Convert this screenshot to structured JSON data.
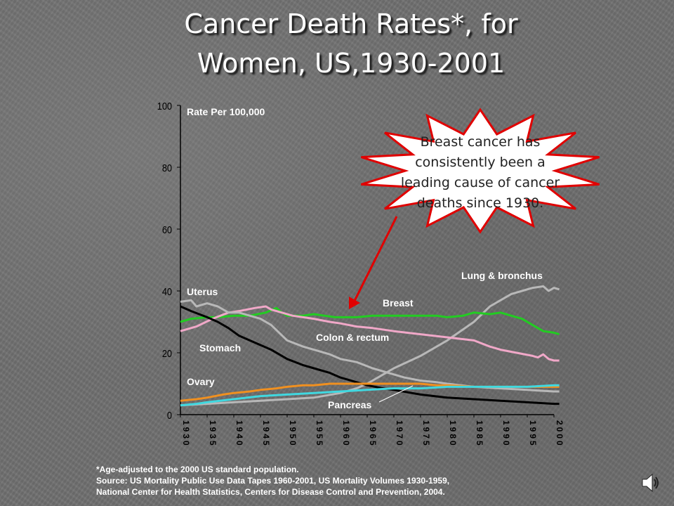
{
  "slide": {
    "title_line1": "Cancer Death Rates*, for",
    "title_line2": "Women, US,1930-2001",
    "footnote_line1": "*Age-adjusted to the 2000 US standard population.",
    "footnote_line2": "Source:  US Mortality Public Use Data Tapes 1960-2001, US Mortality Volumes 1930-1959,",
    "footnote_line3": "National Center for Health Statistics, Centers for Disease Control and Prevention, 2004.",
    "callout_lines": [
      "Breast cancer has",
      "consistently been a",
      "leading cause of cancer",
      "deaths since 1930."
    ],
    "colors": {
      "background": "#6f6f6f",
      "callout_fill": "#ffffff",
      "callout_border": "#e00000",
      "arrow": "#e00000"
    },
    "speaker_icon": "speaker-icon"
  },
  "chart_data": {
    "type": "line",
    "title": "",
    "ylabel": "Rate Per 100,000",
    "xlabel": "",
    "xlim": [
      1930,
      2000
    ],
    "ylim": [
      0,
      100
    ],
    "y_ticks": [
      "0",
      "20",
      "40",
      "60",
      "80",
      "100"
    ],
    "x_ticks": [
      "1930",
      "1935",
      "1940",
      "1945",
      "1950",
      "1955",
      "1960",
      "1965",
      "1970",
      "1975",
      "1980",
      "1985",
      "1990",
      "1995",
      "2000"
    ],
    "grid": false,
    "series": [
      {
        "name": "Lung & bronchus",
        "color": "#b8b8b8",
        "points": [
          [
            1930,
            3
          ],
          [
            1935,
            3.5
          ],
          [
            1940,
            4
          ],
          [
            1945,
            4.5
          ],
          [
            1950,
            5
          ],
          [
            1955,
            5.5
          ],
          [
            1960,
            7
          ],
          [
            1963,
            8.5
          ],
          [
            1965,
            10
          ],
          [
            1968,
            13
          ],
          [
            1970,
            15
          ],
          [
            1975,
            19
          ],
          [
            1980,
            24
          ],
          [
            1985,
            30
          ],
          [
            1988,
            35
          ],
          [
            1990,
            37
          ],
          [
            1992,
            39
          ],
          [
            1994,
            40
          ],
          [
            1996,
            41
          ],
          [
            1998,
            41.5
          ],
          [
            1999,
            40
          ],
          [
            2000,
            41
          ],
          [
            2001,
            40.5
          ]
        ]
      },
      {
        "name": "Breast",
        "color": "#22cc22",
        "points": [
          [
            1930,
            30
          ],
          [
            1932,
            31
          ],
          [
            1935,
            31.5
          ],
          [
            1937,
            31.5
          ],
          [
            1940,
            32
          ],
          [
            1943,
            32
          ],
          [
            1946,
            33
          ],
          [
            1948,
            34.5
          ],
          [
            1949,
            33
          ],
          [
            1950,
            32
          ],
          [
            1953,
            32
          ],
          [
            1955,
            32.5
          ],
          [
            1957,
            32
          ],
          [
            1959,
            31.5
          ],
          [
            1961,
            31.5
          ],
          [
            1963,
            31.5
          ],
          [
            1966,
            32
          ],
          [
            1969,
            32
          ],
          [
            1972,
            32
          ],
          [
            1975,
            32
          ],
          [
            1978,
            32
          ],
          [
            1980,
            31.5
          ],
          [
            1983,
            32
          ],
          [
            1985,
            33
          ],
          [
            1988,
            32.5
          ],
          [
            1990,
            33
          ],
          [
            1992,
            32
          ],
          [
            1994,
            31
          ],
          [
            1996,
            29
          ],
          [
            1998,
            27
          ],
          [
            2000,
            26.5
          ],
          [
            2001,
            26
          ]
        ]
      },
      {
        "name": "Uterus",
        "color": "#f0a8c8",
        "points": [
          [
            1930,
            27
          ],
          [
            1933,
            28.5
          ],
          [
            1936,
            31
          ],
          [
            1939,
            33
          ],
          [
            1941,
            33.5
          ],
          [
            1944,
            34.5
          ],
          [
            1946,
            35
          ],
          [
            1947,
            34
          ],
          [
            1949,
            33
          ],
          [
            1951,
            32
          ],
          [
            1953,
            31.5
          ],
          [
            1955,
            31
          ],
          [
            1958,
            30
          ],
          [
            1960,
            29.5
          ],
          [
            1963,
            28.5
          ],
          [
            1966,
            28
          ],
          [
            1970,
            27
          ],
          [
            1975,
            26
          ],
          [
            1980,
            25
          ],
          [
            1985,
            24
          ],
          [
            1988,
            22
          ],
          [
            1990,
            21
          ],
          [
            1993,
            20
          ],
          [
            1996,
            19
          ],
          [
            1997,
            18.5
          ],
          [
            1998,
            19.5
          ],
          [
            1999,
            18
          ],
          [
            2000,
            17.5
          ],
          [
            2001,
            17.5
          ]
        ]
      },
      {
        "name": "Colon & rectum",
        "color": "#b8b8b8",
        "points": [
          [
            1930,
            36.5
          ],
          [
            1932,
            37
          ],
          [
            1933,
            35
          ],
          [
            1935,
            36
          ],
          [
            1937,
            35
          ],
          [
            1939,
            33
          ],
          [
            1941,
            33
          ],
          [
            1943,
            32
          ],
          [
            1945,
            31
          ],
          [
            1947,
            29
          ],
          [
            1950,
            24
          ],
          [
            1953,
            22
          ],
          [
            1955,
            21
          ],
          [
            1958,
            19.5
          ],
          [
            1960,
            18
          ],
          [
            1963,
            17
          ],
          [
            1966,
            15
          ],
          [
            1968,
            14
          ],
          [
            1970,
            13
          ],
          [
            1972,
            12
          ],
          [
            1975,
            11
          ],
          [
            1978,
            10.5
          ],
          [
            1980,
            10
          ],
          [
            1985,
            9
          ],
          [
            1990,
            8.5
          ],
          [
            1995,
            8
          ],
          [
            2000,
            7.5
          ],
          [
            2001,
            7.5
          ]
        ]
      },
      {
        "name": "Stomach",
        "color": "#000000",
        "points": [
          [
            1930,
            35
          ],
          [
            1932,
            33.5
          ],
          [
            1935,
            31.5
          ],
          [
            1937,
            30
          ],
          [
            1939,
            28
          ],
          [
            1941,
            25.5
          ],
          [
            1943,
            24
          ],
          [
            1945,
            22.5
          ],
          [
            1947,
            21
          ],
          [
            1950,
            18
          ],
          [
            1953,
            16
          ],
          [
            1955,
            15
          ],
          [
            1958,
            13.5
          ],
          [
            1960,
            12
          ],
          [
            1963,
            10.5
          ],
          [
            1965,
            9.5
          ],
          [
            1968,
            8.5
          ],
          [
            1970,
            8
          ],
          [
            1975,
            6.5
          ],
          [
            1980,
            5.5
          ],
          [
            1985,
            5
          ],
          [
            1990,
            4.5
          ],
          [
            1995,
            4
          ],
          [
            2000,
            3.5
          ],
          [
            2001,
            3.5
          ]
        ]
      },
      {
        "name": "Ovary",
        "color": "#f09020",
        "points": [
          [
            1930,
            4.5
          ],
          [
            1933,
            5
          ],
          [
            1935,
            5.5
          ],
          [
            1938,
            6.5
          ],
          [
            1940,
            7
          ],
          [
            1943,
            7.5
          ],
          [
            1945,
            8
          ],
          [
            1948,
            8.5
          ],
          [
            1950,
            9
          ],
          [
            1953,
            9.5
          ],
          [
            1955,
            9.5
          ],
          [
            1958,
            10
          ],
          [
            1960,
            10
          ],
          [
            1963,
            10
          ],
          [
            1965,
            10
          ],
          [
            1968,
            10
          ],
          [
            1970,
            10
          ],
          [
            1973,
            10
          ],
          [
            1975,
            10
          ],
          [
            1978,
            9.5
          ],
          [
            1980,
            9.5
          ],
          [
            1985,
            9
          ],
          [
            1990,
            9
          ],
          [
            1995,
            9
          ],
          [
            2000,
            9
          ],
          [
            2001,
            9
          ]
        ]
      },
      {
        "name": "Pancreas",
        "color": "#40d8e0",
        "points": [
          [
            1930,
            3
          ],
          [
            1933,
            3.5
          ],
          [
            1935,
            4
          ],
          [
            1940,
            5
          ],
          [
            1945,
            6
          ],
          [
            1950,
            6.5
          ],
          [
            1955,
            7
          ],
          [
            1960,
            7.5
          ],
          [
            1965,
            8
          ],
          [
            1970,
            8.5
          ],
          [
            1975,
            8.5
          ],
          [
            1980,
            9
          ],
          [
            1985,
            9
          ],
          [
            1990,
            9
          ],
          [
            1995,
            9
          ],
          [
            2000,
            9.5
          ],
          [
            2001,
            9.5
          ]
        ]
      }
    ],
    "series_labels": [
      "Lung & bronchus",
      "Breast",
      "Uterus",
      "Colon & rectum",
      "Stomach",
      "Ovary",
      "Pancreas"
    ]
  }
}
